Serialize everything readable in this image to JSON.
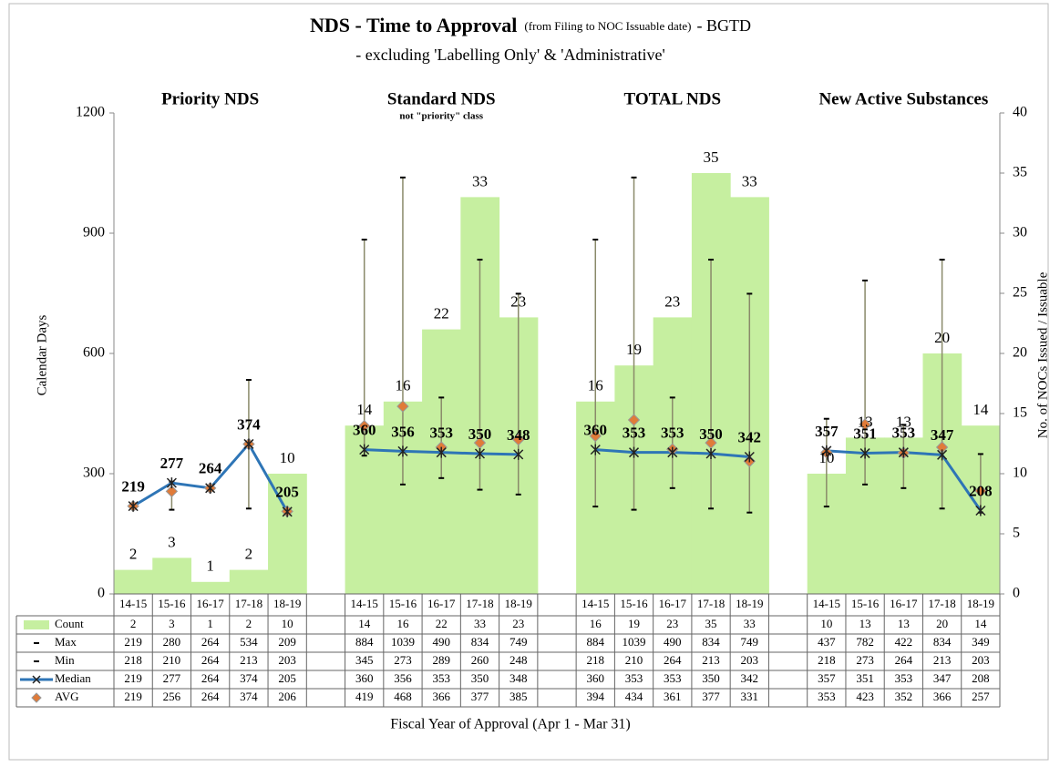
{
  "chart_data": {
    "type": "combo",
    "title": "NDS - Time to Approval",
    "title_note": "(from Filing to NOC Issuable date)",
    "title_suffix": "- BGTD",
    "subtitle": "- excluding 'Labelling Only' & 'Administrative'",
    "group_labels": [
      "Priority NDS",
      "Standard NDS",
      "TOTAL NDS",
      "New Active Substances"
    ],
    "standard_note": "not \"priority\" class",
    "y_label": "Calendar Days",
    "y2_label": "No. of NOCs Issued / Issuable",
    "x_label": "Fiscal Year of Approval (Apr 1 - Mar 31)",
    "categories": [
      "14-15",
      "15-16",
      "16-17",
      "17-18",
      "18-19",
      null,
      "14-15",
      "15-16",
      "16-17",
      "17-18",
      "18-19",
      null,
      "14-15",
      "15-16",
      "16-17",
      "17-18",
      "18-19",
      null,
      "14-15",
      "15-16",
      "16-17",
      "17-18",
      "18-19"
    ],
    "ylim": [
      0,
      1200
    ],
    "yticks": [
      0,
      300,
      600,
      900,
      1200
    ],
    "y2lim": [
      0,
      40
    ],
    "y2ticks": [
      0,
      5,
      10,
      15,
      20,
      25,
      30,
      35,
      40
    ],
    "series": [
      {
        "name": "Count",
        "color": "#c6efa0",
        "axis": "y2",
        "marker": "bar",
        "values": [
          2,
          3,
          1,
          2,
          10,
          null,
          14,
          16,
          22,
          33,
          23,
          null,
          16,
          19,
          23,
          35,
          33,
          null,
          10,
          13,
          13,
          20,
          14
        ]
      },
      {
        "name": "Max",
        "color": "#000000",
        "marker": "dash",
        "values": [
          219,
          280,
          264,
          534,
          209,
          null,
          884,
          1039,
          490,
          834,
          749,
          null,
          884,
          1039,
          490,
          834,
          749,
          null,
          437,
          782,
          422,
          834,
          349
        ]
      },
      {
        "name": "Min",
        "color": "#000000",
        "marker": "dash",
        "values": [
          218,
          210,
          264,
          213,
          203,
          null,
          345,
          273,
          289,
          260,
          248,
          null,
          218,
          210,
          264,
          213,
          203,
          null,
          218,
          273,
          264,
          213,
          203
        ]
      },
      {
        "name": "Median",
        "color": "#2e75b6",
        "marker": "x",
        "values": [
          219,
          277,
          264,
          374,
          205,
          null,
          360,
          356,
          353,
          350,
          348,
          null,
          360,
          353,
          353,
          350,
          342,
          null,
          357,
          351,
          353,
          347,
          208
        ]
      },
      {
        "name": "AVG",
        "color": "#e07b39",
        "marker": "diamond",
        "values": [
          219,
          256,
          264,
          374,
          206,
          null,
          419,
          468,
          366,
          377,
          385,
          null,
          394,
          434,
          361,
          377,
          331,
          null,
          353,
          423,
          352,
          366,
          257
        ]
      }
    ]
  }
}
